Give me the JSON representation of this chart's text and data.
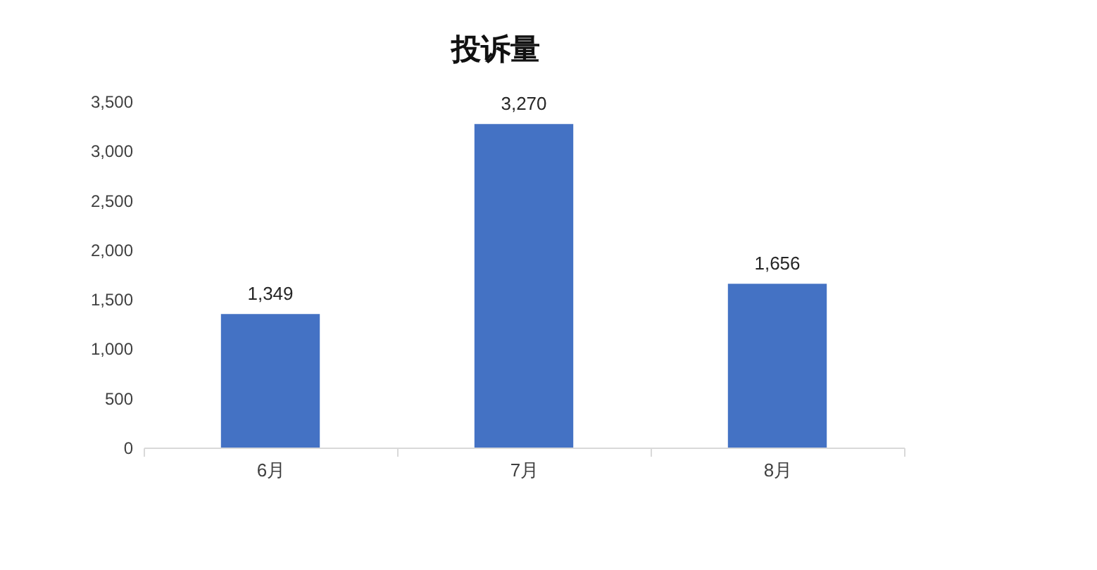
{
  "chart_data": {
    "type": "bar",
    "title": "投诉量",
    "categories": [
      "6月",
      "7月",
      "8月"
    ],
    "values": [
      1349,
      3270,
      1656
    ],
    "color": "#4472c4",
    "value_labels": [
      "1,349",
      "3,270",
      "1,656"
    ],
    "ylim": [
      0,
      3500
    ],
    "yticks": [
      0,
      500,
      {
        "value": 1000,
        "label": "1,000"
      },
      {
        "value": 1500,
        "label": "1,500"
      },
      {
        "value": 2000,
        "label": "2,000"
      },
      {
        "value": 2500,
        "label": "2,500"
      },
      {
        "value": 3000,
        "label": "3,000"
      },
      {
        "value": 3500,
        "label": "3,500"
      }
    ]
  }
}
